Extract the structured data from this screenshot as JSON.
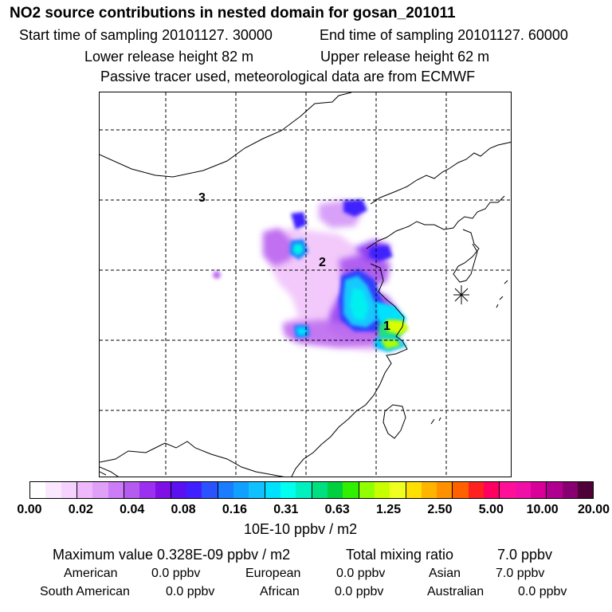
{
  "header": {
    "title": "NO2 source contributions in nested domain for gosan_201011",
    "start_time": "Start time of sampling 20101127. 30000",
    "end_time": "End time of sampling 20101127. 60000",
    "lower_release": "Lower release height   82 m",
    "upper_release": "Upper release height   62 m",
    "tracer_note": "Passive tracer used, meteorological data are from ECMWF"
  },
  "map": {
    "region_labels": [
      "3",
      "2",
      "1"
    ],
    "receptor_marker": "receptor-star"
  },
  "colorbar": {
    "unit": "10E-10 ppbv / m2",
    "ticks": [
      "0.00",
      "0.02",
      "0.04",
      "0.08",
      "0.16",
      "0.31",
      "0.63",
      "1.25",
      "2.50",
      "5.00",
      "10.00",
      "20.00"
    ],
    "colors": [
      "#ffffff",
      "#fbe8ff",
      "#f6d2ff",
      "#f0b8fc",
      "#e0a0f8",
      "#cc7cf6",
      "#b45cf0",
      "#9c30f0",
      "#7e10e6",
      "#5a10f0",
      "#4020ff",
      "#2b52ff",
      "#1a7cff",
      "#10a0ff",
      "#10c0ff",
      "#00e0ff",
      "#00ffee",
      "#00f0c0",
      "#00e080",
      "#00d040",
      "#30f000",
      "#90ff00",
      "#c8ff00",
      "#f0ff20",
      "#ffe000",
      "#ffb400",
      "#ff9000",
      "#ff6000",
      "#ff2020",
      "#ff0060",
      "#ff1098",
      "#f010a8",
      "#d80098",
      "#b00090",
      "#880070",
      "#500038"
    ]
  },
  "summary": {
    "max_value": "Maximum value  0.328E-09 ppbv / m2",
    "total_label": "Total mixing ratio",
    "total_value": "7.0 ppbv",
    "sources": [
      {
        "name": "American",
        "value": "0.0 ppbv"
      },
      {
        "name": "European",
        "value": "0.0 ppbv"
      },
      {
        "name": "Asian",
        "value": "7.0 ppbv"
      },
      {
        "name": "South American",
        "value": "0.0 ppbv"
      },
      {
        "name": "African",
        "value": "0.0 ppbv"
      },
      {
        "name": "Australian",
        "value": "0.0 ppbv"
      }
    ]
  }
}
